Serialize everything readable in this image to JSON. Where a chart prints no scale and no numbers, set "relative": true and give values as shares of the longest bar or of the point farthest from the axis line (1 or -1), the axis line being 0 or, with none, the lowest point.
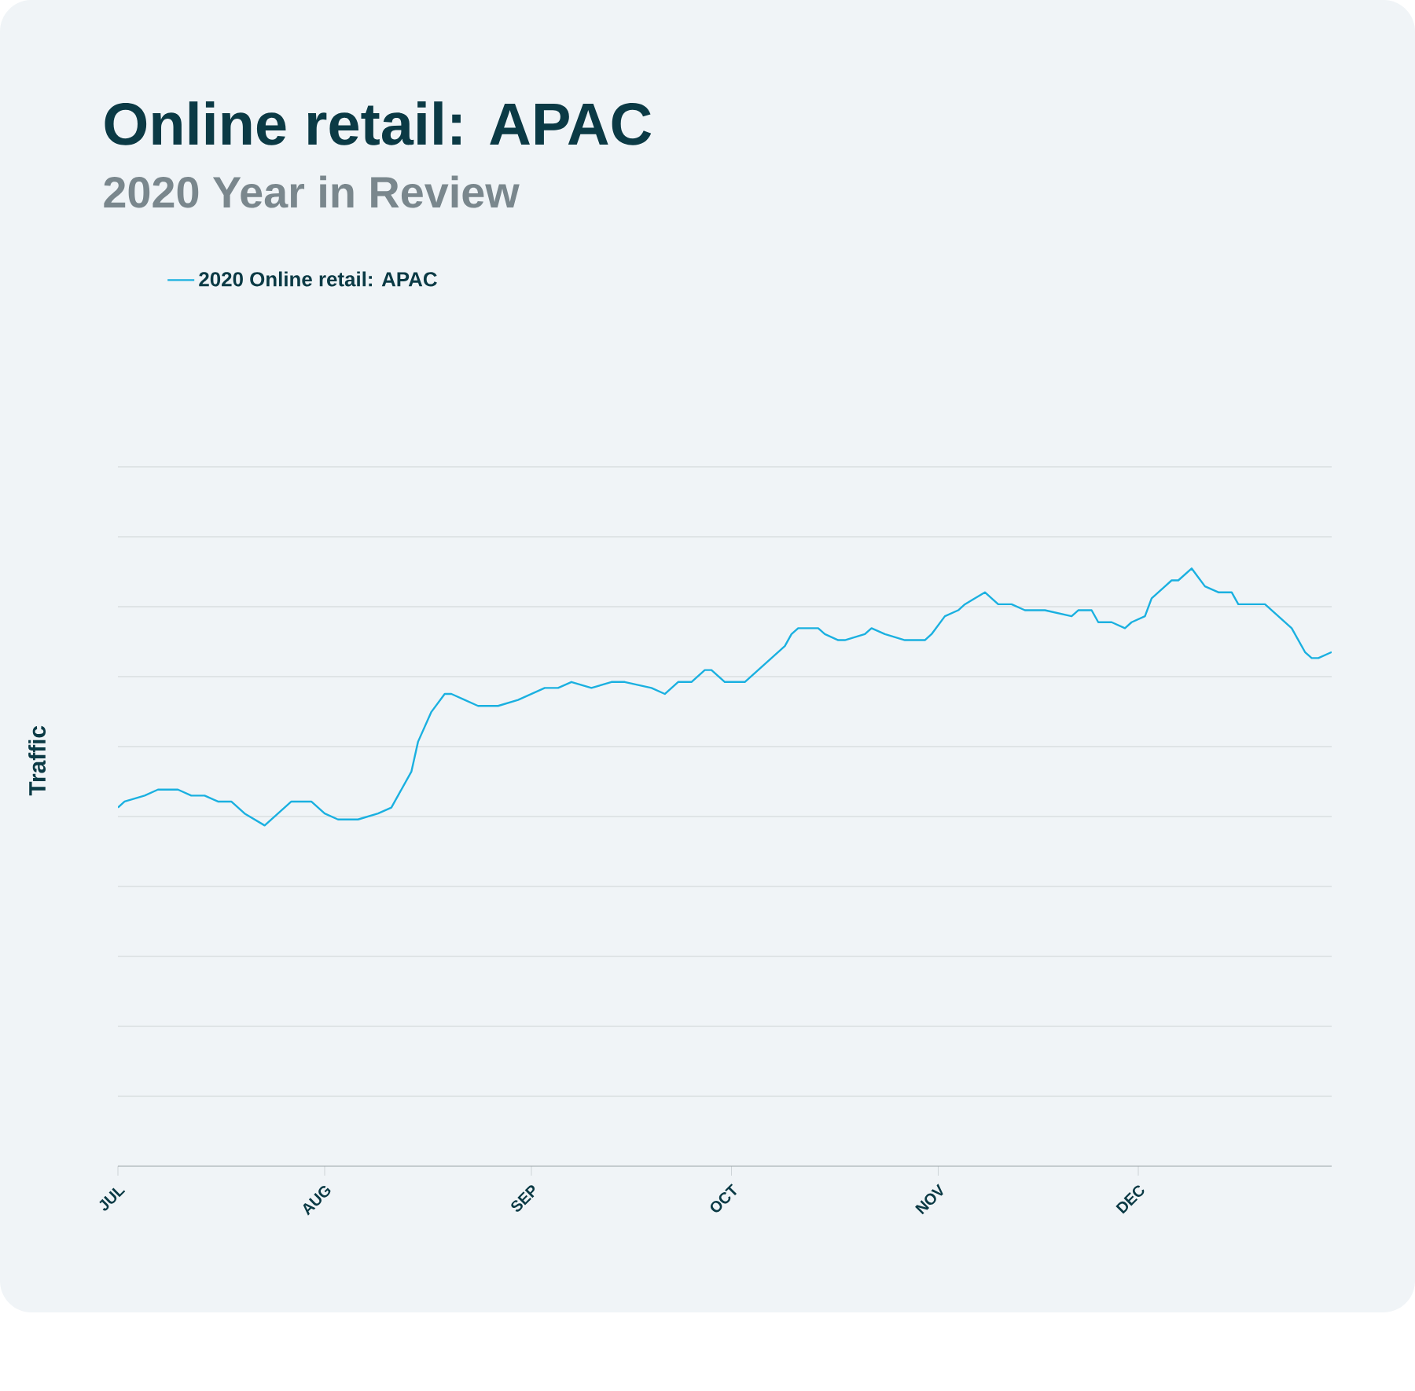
{
  "chart_data": {
    "type": "line",
    "title": "Online retail: APAC",
    "subtitle": "2020 Year in Review",
    "ylabel": "Traffic",
    "relative": true,
    "grid": "y",
    "legend": "top left",
    "xlim": [
      "2020-07-01",
      "2020-12-30"
    ],
    "xticks": [
      {
        "value": "2020-07-01",
        "label": "JUL"
      },
      {
        "value": "2020-08-01",
        "label": "AUG"
      },
      {
        "value": "2020-09-01",
        "label": "SEP"
      },
      {
        "value": "2020-10-01",
        "label": "OCT"
      },
      {
        "value": "2020-11-01",
        "label": "NOV"
      },
      {
        "value": "2020-12-01",
        "label": "DEC"
      }
    ],
    "x": [
      "2020-07-01",
      "2020-07-02",
      "2020-07-05",
      "2020-07-07",
      "2020-07-10",
      "2020-07-12",
      "2020-07-14",
      "2020-07-16",
      "2020-07-18",
      "2020-07-20",
      "2020-07-23",
      "2020-07-25",
      "2020-07-27",
      "2020-07-30",
      "2020-08-01",
      "2020-08-03",
      "2020-08-06",
      "2020-08-09",
      "2020-08-11",
      "2020-08-12",
      "2020-08-14",
      "2020-08-15",
      "2020-08-17",
      "2020-08-19",
      "2020-08-20",
      "2020-08-22",
      "2020-08-24",
      "2020-08-27",
      "2020-08-30",
      "2020-09-01",
      "2020-09-03",
      "2020-09-05",
      "2020-09-07",
      "2020-09-10",
      "2020-09-13",
      "2020-09-15",
      "2020-09-19",
      "2020-09-21",
      "2020-09-23",
      "2020-09-25",
      "2020-09-27",
      "2020-09-28",
      "2020-09-30",
      "2020-10-01",
      "2020-10-03",
      "2020-10-05",
      "2020-10-07",
      "2020-10-09",
      "2020-10-10",
      "2020-10-11",
      "2020-10-13",
      "2020-10-14",
      "2020-10-15",
      "2020-10-17",
      "2020-10-18",
      "2020-10-21",
      "2020-10-22",
      "2020-10-24",
      "2020-10-27",
      "2020-10-28",
      "2020-10-30",
      "2020-10-31",
      "2020-11-02",
      "2020-11-04",
      "2020-11-05",
      "2020-11-08",
      "2020-11-09",
      "2020-11-10",
      "2020-11-12",
      "2020-11-14",
      "2020-11-17",
      "2020-11-21",
      "2020-11-22",
      "2020-11-24",
      "2020-11-25",
      "2020-11-27",
      "2020-11-29",
      "2020-11-30",
      "2020-12-02",
      "2020-12-03",
      "2020-12-05",
      "2020-12-06",
      "2020-12-07",
      "2020-12-09",
      "2020-12-11",
      "2020-12-13",
      "2020-12-15",
      "2020-12-16",
      "2020-12-17",
      "2020-12-19",
      "2020-12-20",
      "2020-12-22",
      "2020-12-24",
      "2020-12-26",
      "2020-12-27",
      "2020-12-28",
      "2020-12-30"
    ],
    "series": [
      {
        "name": "2020 Online retail: APAC",
        "color": "#1ab0e0",
        "values": [
          0.6,
          0.61,
          0.62,
          0.63,
          0.63,
          0.62,
          0.62,
          0.61,
          0.61,
          0.59,
          0.57,
          0.59,
          0.61,
          0.61,
          0.59,
          0.58,
          0.58,
          0.59,
          0.6,
          0.62,
          0.66,
          0.71,
          0.76,
          0.79,
          0.79,
          0.78,
          0.77,
          0.77,
          0.78,
          0.79,
          0.8,
          0.8,
          0.81,
          0.8,
          0.81,
          0.81,
          0.8,
          0.79,
          0.81,
          0.81,
          0.83,
          0.83,
          0.81,
          0.81,
          0.81,
          0.83,
          0.85,
          0.87,
          0.89,
          0.9,
          0.9,
          0.9,
          0.89,
          0.88,
          0.88,
          0.89,
          0.9,
          0.89,
          0.88,
          0.88,
          0.88,
          0.89,
          0.92,
          0.93,
          0.94,
          0.96,
          0.95,
          0.94,
          0.94,
          0.93,
          0.93,
          0.92,
          0.93,
          0.93,
          0.91,
          0.91,
          0.9,
          0.91,
          0.92,
          0.95,
          0.97,
          0.98,
          0.98,
          1,
          0.97,
          0.96,
          0.96,
          0.94,
          0.94,
          0.94,
          0.94,
          0.92,
          0.9,
          0.86,
          0.85,
          0.85,
          0.86
        ]
      }
    ]
  }
}
